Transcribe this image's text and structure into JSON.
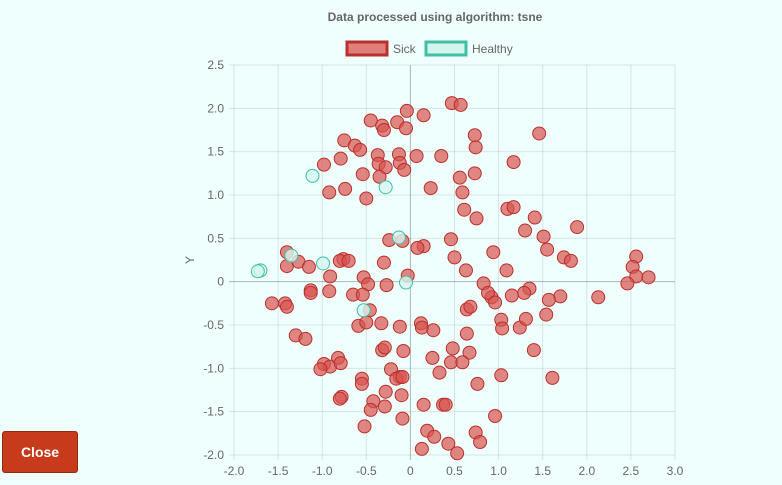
{
  "close_button_label": "Close",
  "chart_data": {
    "type": "scatter",
    "title": "Data processed using algorithm: tsne",
    "xlabel": "",
    "ylabel": "Y",
    "xlim": [
      -2.0,
      3.0
    ],
    "ylim": [
      -2.0,
      2.5
    ],
    "x_ticks": [
      "-2.0",
      "-1.5",
      "-1.0",
      "-0.5",
      "0",
      "0.5",
      "1.0",
      "1.5",
      "2.0",
      "2.5",
      "3.0"
    ],
    "y_ticks": [
      "2.5",
      "2.0",
      "1.5",
      "1.0",
      "0.5",
      "0",
      "-0.5",
      "-1.0",
      "-1.5",
      "-2.0"
    ],
    "grid": true,
    "legend_position": "top",
    "series": [
      {
        "name": "Sick",
        "color": "#d9534f",
        "border_color": "#b8312b",
        "points": [
          [
            -0.04,
            1.97
          ],
          [
            0.15,
            1.92
          ],
          [
            0.47,
            2.06
          ],
          [
            0.57,
            2.04
          ],
          [
            -0.45,
            1.86
          ],
          [
            -0.32,
            1.8
          ],
          [
            -0.3,
            1.75
          ],
          [
            -0.15,
            1.84
          ],
          [
            -0.05,
            1.77
          ],
          [
            0.73,
            1.69
          ],
          [
            1.46,
            1.71
          ],
          [
            0.74,
            1.55
          ],
          [
            -0.75,
            1.63
          ],
          [
            -0.63,
            1.57
          ],
          [
            -0.57,
            1.52
          ],
          [
            -0.79,
            1.42
          ],
          [
            -0.37,
            1.46
          ],
          [
            -0.13,
            1.47
          ],
          [
            0.07,
            1.45
          ],
          [
            0.35,
            1.45
          ],
          [
            1.17,
            1.38
          ],
          [
            -0.98,
            1.35
          ],
          [
            -0.36,
            1.36
          ],
          [
            -0.28,
            1.32
          ],
          [
            -0.12,
            1.37
          ],
          [
            -0.07,
            1.29
          ],
          [
            0.56,
            1.2
          ],
          [
            0.73,
            1.25
          ],
          [
            -0.54,
            1.24
          ],
          [
            -0.35,
            1.21
          ],
          [
            -0.74,
            1.07
          ],
          [
            -0.92,
            1.03
          ],
          [
            0.23,
            1.08
          ],
          [
            0.59,
            1.03
          ],
          [
            -0.5,
            0.96
          ],
          [
            0.61,
            0.83
          ],
          [
            0.75,
            0.73
          ],
          [
            1.1,
            0.84
          ],
          [
            1.17,
            0.86
          ],
          [
            1.41,
            0.74
          ],
          [
            1.89,
            0.63
          ],
          [
            1.3,
            0.59
          ],
          [
            -0.24,
            0.48
          ],
          [
            -0.09,
            0.47
          ],
          [
            0.15,
            0.41
          ],
          [
            0.08,
            0.39
          ],
          [
            0.46,
            0.49
          ],
          [
            1.51,
            0.52
          ],
          [
            -1.4,
            0.34
          ],
          [
            -1.4,
            0.18
          ],
          [
            -1.27,
            0.23
          ],
          [
            -1.15,
            0.17
          ],
          [
            -0.76,
            0.26
          ],
          [
            -0.8,
            0.24
          ],
          [
            -0.7,
            0.24
          ],
          [
            -0.3,
            0.22
          ],
          [
            0.5,
            0.28
          ],
          [
            0.94,
            0.34
          ],
          [
            1.55,
            0.37
          ],
          [
            1.74,
            0.28
          ],
          [
            1.82,
            0.24
          ],
          [
            2.56,
            0.29
          ],
          [
            2.52,
            0.17
          ],
          [
            2.56,
            0.06
          ],
          [
            2.7,
            0.05
          ],
          [
            2.46,
            -0.02
          ],
          [
            -0.91,
            0.06
          ],
          [
            -0.53,
            0.05
          ],
          [
            -0.48,
            -0.03
          ],
          [
            -0.27,
            -0.04
          ],
          [
            -0.03,
            0.07
          ],
          [
            0.63,
            0.13
          ],
          [
            0.83,
            -0.02
          ],
          [
            1.09,
            0.13
          ],
          [
            1.35,
            -0.08
          ],
          [
            1.29,
            -0.13
          ],
          [
            1.15,
            -0.16
          ],
          [
            0.92,
            -0.18
          ],
          [
            0.88,
            -0.13
          ],
          [
            0.96,
            -0.24
          ],
          [
            1.7,
            -0.17
          ],
          [
            1.57,
            -0.21
          ],
          [
            2.13,
            -0.18
          ],
          [
            -1.13,
            -0.1
          ],
          [
            -1.13,
            -0.13
          ],
          [
            -0.92,
            -0.11
          ],
          [
            -0.65,
            -0.15
          ],
          [
            -0.54,
            -0.15
          ],
          [
            -1.42,
            -0.25
          ],
          [
            -1.57,
            -0.25
          ],
          [
            -1.4,
            -0.29
          ],
          [
            -0.46,
            -0.33
          ],
          [
            0.64,
            -0.32
          ],
          [
            0.68,
            -0.29
          ],
          [
            1.03,
            -0.44
          ],
          [
            1.04,
            -0.54
          ],
          [
            1.24,
            -0.53
          ],
          [
            1.31,
            -0.43
          ],
          [
            1.54,
            -0.38
          ],
          [
            -0.59,
            -0.51
          ],
          [
            -0.5,
            -0.47
          ],
          [
            -0.33,
            -0.48
          ],
          [
            -0.12,
            -0.52
          ],
          [
            0.12,
            -0.48
          ],
          [
            0.13,
            -0.53
          ],
          [
            0.26,
            -0.56
          ],
          [
            0.64,
            -0.6
          ],
          [
            -1.3,
            -0.62
          ],
          [
            -1.19,
            -0.66
          ],
          [
            -0.32,
            -0.79
          ],
          [
            -0.29,
            -0.76
          ],
          [
            -0.08,
            -0.8
          ],
          [
            0.48,
            -0.77
          ],
          [
            0.67,
            -0.82
          ],
          [
            1.4,
            -0.79
          ],
          [
            -0.98,
            -0.95
          ],
          [
            -0.91,
            -0.98
          ],
          [
            -0.82,
            -0.88
          ],
          [
            -0.79,
            -0.94
          ],
          [
            -1.02,
            -1.01
          ],
          [
            -0.22,
            -1.01
          ],
          [
            -0.12,
            -1.1
          ],
          [
            -0.16,
            -1.12
          ],
          [
            -0.09,
            -1.1
          ],
          [
            0.25,
            -0.88
          ],
          [
            0.46,
            -0.93
          ],
          [
            0.59,
            -0.93
          ],
          [
            0.33,
            -1.05
          ],
          [
            1.03,
            -1.08
          ],
          [
            0.76,
            -1.18
          ],
          [
            1.61,
            -1.11
          ],
          [
            -0.55,
            -1.12
          ],
          [
            -0.55,
            -1.18
          ],
          [
            -0.78,
            -1.33
          ],
          [
            -0.8,
            -1.35
          ],
          [
            -0.28,
            -1.27
          ],
          [
            -0.1,
            -1.31
          ],
          [
            -0.42,
            -1.38
          ],
          [
            -0.29,
            -1.44
          ],
          [
            -0.45,
            -1.48
          ],
          [
            0.15,
            -1.42
          ],
          [
            0.37,
            -1.42
          ],
          [
            0.4,
            -1.42
          ],
          [
            0.96,
            -1.55
          ],
          [
            -0.09,
            -1.58
          ],
          [
            -0.52,
            -1.67
          ],
          [
            0.19,
            -1.72
          ],
          [
            0.27,
            -1.79
          ],
          [
            0.74,
            -1.74
          ],
          [
            0.79,
            -1.85
          ],
          [
            0.43,
            -1.87
          ],
          [
            0.13,
            -1.93
          ],
          [
            0.53,
            -1.98
          ]
        ]
      },
      {
        "name": "Healthy",
        "color": "#d4f5ee",
        "border_color": "#3fbfa5",
        "points": [
          [
            -1.11,
            1.22
          ],
          [
            -0.28,
            1.09
          ],
          [
            -0.13,
            0.51
          ],
          [
            -1.35,
            0.3
          ],
          [
            -0.99,
            0.21
          ],
          [
            -1.7,
            0.13
          ],
          [
            -1.73,
            0.12
          ],
          [
            -0.53,
            -0.33
          ],
          [
            -0.05,
            -0.01
          ]
        ]
      }
    ]
  }
}
